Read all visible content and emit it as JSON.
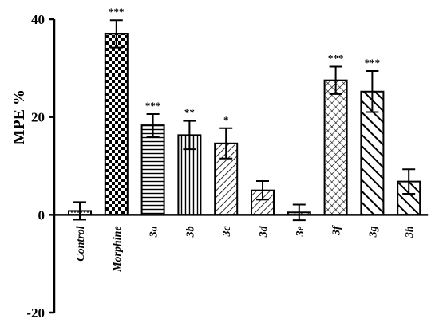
{
  "chart_data": {
    "type": "bar",
    "ylabel": "MPE %",
    "ylim": [
      -20,
      40
    ],
    "yticks": [
      "-20",
      "0",
      "20",
      "40"
    ],
    "categories": [
      "Control",
      "Morphine",
      "3a",
      "3b",
      "3c",
      "3d",
      "3e",
      "3f",
      "3g",
      "3h"
    ],
    "values": [
      0.8,
      37.0,
      18.3,
      16.3,
      14.6,
      5.0,
      0.5,
      27.5,
      25.2,
      6.8
    ],
    "errors": [
      1.8,
      2.8,
      2.3,
      2.9,
      3.1,
      1.9,
      1.6,
      2.8,
      4.2,
      2.5
    ],
    "significance": [
      "",
      "***",
      "***",
      "**",
      "*",
      "",
      "",
      "***",
      "***",
      ""
    ],
    "patterns": [
      "dots",
      "checker",
      "hlines",
      "vlines",
      "diag-fine",
      "diag-fine",
      "diag-fine",
      "crosshatch",
      "diag-thick",
      "diag-thick"
    ],
    "grid": false,
    "legend": "none"
  }
}
